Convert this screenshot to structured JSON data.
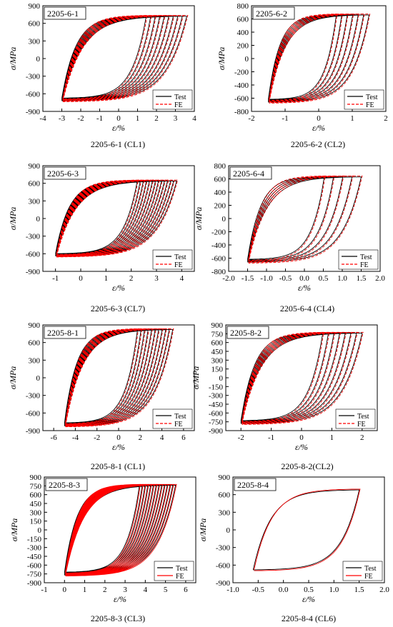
{
  "figure": {
    "panels": [
      {
        "id": "p1",
        "caption": "2205-6-1 (CL1)",
        "chart_data": {
          "type": "line",
          "title": "2205-6-1",
          "xlabel": "ε/%",
          "ylabel": "σ/MPa",
          "xlim": [
            -4,
            4
          ],
          "ylim": [
            -900,
            900
          ],
          "xticks": [
            -4,
            -3,
            -2,
            -1,
            0,
            1,
            2,
            3,
            4
          ],
          "yticks": [
            -900,
            -600,
            -300,
            0,
            300,
            600,
            900
          ],
          "legend_position": "bottom-right",
          "series": [
            {
              "name": "Test",
              "color": "#000000",
              "style": "solid"
            },
            {
              "name": "FE",
              "color": "#ff0000",
              "style": "dashed"
            }
          ],
          "envelope": {
            "eps_min": -3.0,
            "eps_max": 3.6,
            "sig_pos": 720,
            "sig_neg": -720,
            "loops": 10
          }
        }
      },
      {
        "id": "p2",
        "caption": "2205-6-2 (CL2)",
        "chart_data": {
          "type": "line",
          "title": "2205-6-2",
          "xlabel": "ε/%",
          "ylabel": "σ/MPa",
          "xlim": [
            -2,
            2
          ],
          "ylim": [
            -800,
            800
          ],
          "xticks": [
            -2,
            -1,
            0,
            1,
            2
          ],
          "yticks": [
            -800,
            -600,
            -400,
            -200,
            0,
            200,
            400,
            600,
            800
          ],
          "legend_position": "bottom-right",
          "series": [
            {
              "name": "Test",
              "color": "#000000",
              "style": "solid"
            },
            {
              "name": "FE",
              "color": "#ff0000",
              "style": "dashed"
            }
          ],
          "envelope": {
            "eps_min": -1.5,
            "eps_max": 1.5,
            "sig_pos": 660,
            "sig_neg": -660,
            "loops": 7
          }
        }
      },
      {
        "id": "p3",
        "caption": "2205-6-3 (CL7)",
        "chart_data": {
          "type": "line",
          "title": "2205-6-3",
          "xlabel": "ε/%",
          "ylabel": "σ/MPa",
          "xlim": [
            -1.5,
            4.5
          ],
          "ylim": [
            -900,
            900
          ],
          "xticks": [
            -1,
            0,
            1,
            2,
            3,
            4
          ],
          "yticks": [
            -900,
            -600,
            -300,
            0,
            300,
            600,
            900
          ],
          "legend_position": "bottom-right",
          "series": [
            {
              "name": "Test",
              "color": "#000000",
              "style": "solid"
            },
            {
              "name": "FE",
              "color": "#ff0000",
              "style": "dashed"
            }
          ],
          "envelope": {
            "eps_min": -1.0,
            "eps_max": 3.8,
            "sig_pos": 640,
            "sig_neg": -640,
            "loops": 14
          }
        }
      },
      {
        "id": "p4",
        "caption": "2205-6-4 (CL4)",
        "chart_data": {
          "type": "line",
          "title": "2205-6-4",
          "xlabel": "ε/%",
          "ylabel": "σ/MPa",
          "xlim": [
            -2.0,
            2.0
          ],
          "ylim": [
            -800,
            800
          ],
          "xticks": [
            "-2.0",
            "-1.5",
            "-1.0",
            "-0.5",
            "0.0",
            "0.5",
            "1.0",
            "1.5",
            "2.0"
          ],
          "yticks": [
            -800,
            -600,
            -400,
            -200,
            0,
            200,
            400,
            600,
            800
          ],
          "legend_position": "bottom-right",
          "series": [
            {
              "name": "Test",
              "color": "#000000",
              "style": "solid"
            },
            {
              "name": "FE",
              "color": "#ff0000",
              "style": "dashed"
            }
          ],
          "envelope": {
            "eps_min": -1.5,
            "eps_max": 1.5,
            "sig_pos": 630,
            "sig_neg": -660,
            "loops": 5
          }
        }
      },
      {
        "id": "p5",
        "caption": "2205-8-1 (CL1)",
        "chart_data": {
          "type": "line",
          "title": "2205-8-1",
          "xlabel": "ε/%",
          "ylabel": "σ/MPa",
          "xlim": [
            -7,
            7
          ],
          "ylim": [
            -900,
            900
          ],
          "xticks": [
            -6,
            -4,
            -2,
            0,
            2,
            4,
            6
          ],
          "yticks": [
            -900,
            -600,
            -300,
            0,
            300,
            600,
            900
          ],
          "legend_position": "bottom-right",
          "series": [
            {
              "name": "Test",
              "color": "#000000",
              "style": "solid"
            },
            {
              "name": "FE",
              "color": "#ff0000",
              "style": "dashed"
            }
          ],
          "envelope": {
            "eps_min": -5.0,
            "eps_max": 5.0,
            "sig_pos": 820,
            "sig_neg": -820,
            "loops": 11
          }
        }
      },
      {
        "id": "p6",
        "caption": "2205-8-2(CL2)",
        "chart_data": {
          "type": "line",
          "title": "2205-8-2",
          "xlabel": "ε/%",
          "ylabel": "σ/MPa",
          "xlim": [
            -2.5,
            2.5
          ],
          "ylim": [
            -900,
            900
          ],
          "xticks": [
            -2,
            -1,
            0,
            1,
            2
          ],
          "yticks": [
            -900,
            -750,
            -600,
            -450,
            -300,
            -150,
            0,
            150,
            300,
            450,
            600,
            750,
            900
          ],
          "legend_position": "bottom-right",
          "series": [
            {
              "name": "Test",
              "color": "#000000",
              "style": "solid"
            },
            {
              "name": "FE",
              "color": "#ff0000",
              "style": "dashed"
            }
          ],
          "envelope": {
            "eps_min": -2.0,
            "eps_max": 2.0,
            "sig_pos": 760,
            "sig_neg": -780,
            "loops": 8
          }
        }
      },
      {
        "id": "p7",
        "caption": "2205-8-3 (CL3)",
        "chart_data": {
          "type": "line",
          "title": "2205-8-3",
          "xlabel": "ε/%",
          "ylabel": "σ/MPa",
          "xlim": [
            -1,
            6.5
          ],
          "ylim": [
            -900,
            900
          ],
          "xticks": [
            -1,
            0,
            1,
            2,
            3,
            4,
            5,
            6
          ],
          "yticks": [
            -900,
            -750,
            -600,
            -450,
            -300,
            -150,
            0,
            150,
            300,
            450,
            600,
            750,
            900
          ],
          "legend_position": "bottom-right",
          "series": [
            {
              "name": "Test",
              "color": "#000000",
              "style": "solid"
            },
            {
              "name": "FE",
              "color": "#ff0000",
              "style": "solid"
            }
          ],
          "envelope": {
            "eps_min": 0.0,
            "eps_max": 5.5,
            "sig_pos": 760,
            "sig_neg": -770,
            "loops": 14
          }
        }
      },
      {
        "id": "p8",
        "caption": "2205-8-4 (CL6)",
        "chart_data": {
          "type": "line",
          "title": "2205-8-4",
          "xlabel": "ε/%",
          "ylabel": "σ/MPa",
          "xlim": [
            -1.0,
            2.0
          ],
          "ylim": [
            -900,
            900
          ],
          "xticks": [
            "-1.0",
            "-0.5",
            "0.0",
            "0.5",
            "1.0",
            "1.5",
            "2.0"
          ],
          "yticks": [
            -900,
            -600,
            -300,
            0,
            300,
            600,
            900
          ],
          "legend_position": "bottom-right",
          "series": [
            {
              "name": "Test",
              "color": "#000000",
              "style": "solid"
            },
            {
              "name": "FE",
              "color": "#ff0000",
              "style": "solid"
            }
          ],
          "envelope": {
            "eps_min": -0.6,
            "eps_max": 1.5,
            "sig_pos": 680,
            "sig_neg": -680,
            "loops": 1
          }
        }
      }
    ]
  }
}
